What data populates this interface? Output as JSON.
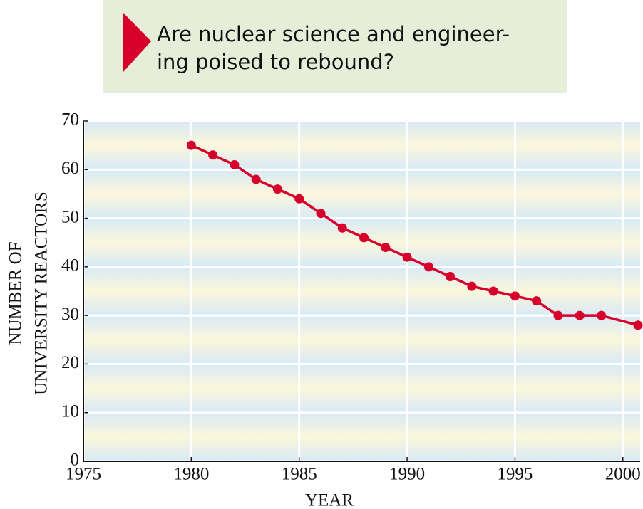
{
  "chart_data": {
    "type": "line",
    "title": [
      "Are nuclear science and engineer-",
      "ing poised to rebound?"
    ],
    "xlabel": "YEAR",
    "ylabel": [
      "NUMBER OF",
      "UNIVERSITY REACTORS"
    ],
    "x": [
      1980,
      1981,
      1982,
      1983,
      1984,
      1985,
      1986,
      1987,
      1988,
      1989,
      1990,
      1991,
      1992,
      1993,
      1994,
      1995,
      1996,
      1997,
      1998,
      1999,
      2000.7
    ],
    "series": [
      {
        "color": "#d6002a",
        "values": [
          65,
          63,
          61,
          58,
          56,
          54,
          51,
          48,
          46,
          44,
          42,
          40,
          38,
          36,
          35,
          34,
          33,
          30,
          30,
          30,
          28
        ]
      }
    ],
    "xlim": [
      1975,
      2000.8
    ],
    "ylim": [
      0,
      70
    ],
    "xticks": [
      1975,
      1980,
      1985,
      1990,
      1995,
      2000
    ],
    "yticks": [
      0,
      10,
      20,
      30,
      40,
      50,
      60,
      70
    ],
    "grid": true
  }
}
